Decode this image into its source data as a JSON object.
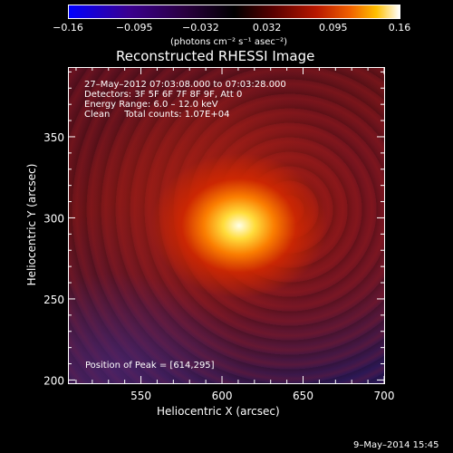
{
  "colorbar": {
    "ticks": [
      "−0.16",
      "−0.095",
      "−0.032",
      "0.032",
      "0.095",
      "0.16"
    ],
    "unit_label": "(photons cm⁻² s⁻¹ asec⁻²)",
    "range": [
      -0.16,
      0.16
    ]
  },
  "annotations": {
    "time_range": "27–May–2012 07:03:08.000 to 07:03:28.000",
    "detectors": "Detectors: 3F 5F 6F 7F 8F 9F, Att 0",
    "energy": "Energy Range: 6.0 – 12.0 keV",
    "clean": "Clean     Total counts: 1.07E+04",
    "peak": "Position of Peak = [614,295]"
  },
  "footer_timestamp": "9–May–2014 15:45",
  "chart_data": {
    "type": "heatmap",
    "title": "Reconstructed RHESSI Image",
    "xlabel": "Heliocentric X (arcsec)",
    "ylabel": "Heliocentric Y (arcsec)",
    "xlim": [
      505,
      700
    ],
    "ylim": [
      198,
      393
    ],
    "xticks": [
      550,
      600,
      650,
      700
    ],
    "yticks": [
      200,
      250,
      300,
      350
    ],
    "peak": {
      "x": 614,
      "y": 295
    },
    "colormap": [
      "#0000ff",
      "#3a0090",
      "#000000",
      "#b81800",
      "#ffc000",
      "#ffffff"
    ]
  }
}
